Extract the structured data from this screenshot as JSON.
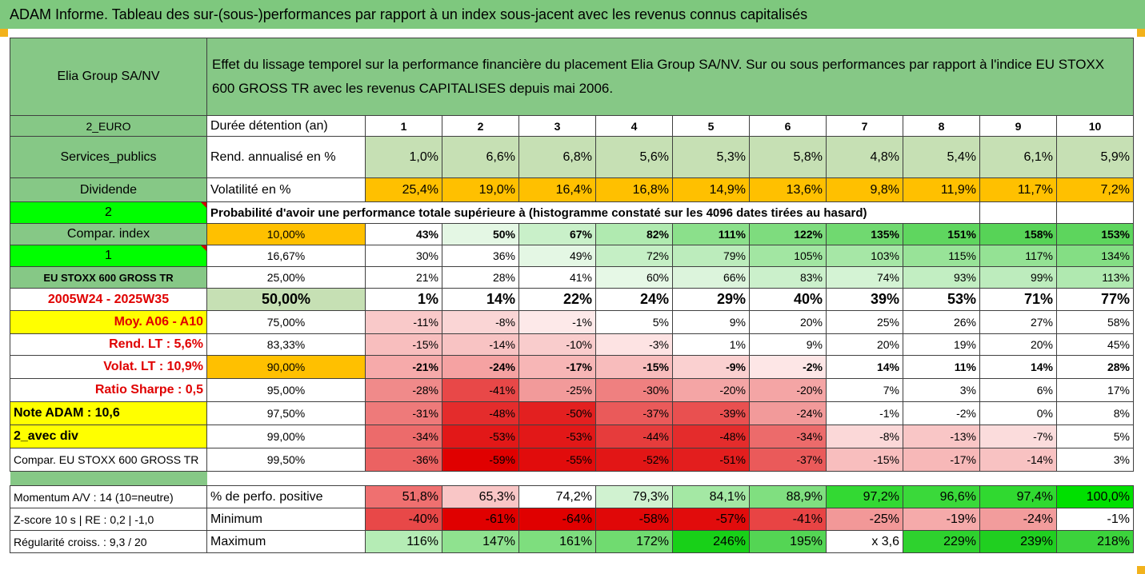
{
  "title": "ADAM Informe. Tableau des sur-(sous-)performances par rapport à un index sous-jacent avec les revenus connus capitalisés",
  "header": {
    "company": "Elia Group SA/NV",
    "description": "Effet du lissage temporel sur la performance financière du placement Elia Group SA/NV. Sur ou sous performances par rapport à l'indice EU STOXX 600 GROSS TR avec les revenus CAPITALISES depuis mai 2006."
  },
  "left_labels": {
    "currency": "2_EURO",
    "sector": "Services_publics",
    "dividend": "Dividende",
    "two": "2",
    "compar_index": "Compar. index",
    "one": "1",
    "index_name": "EU STOXX 600 GROSS TR",
    "period": "2005W24 - 2025W35",
    "moy": "Moy. A06 - A10",
    "rend_lt": "Rend. LT :   5,6%",
    "volat_lt": "Volat. LT :   10,9%",
    "sharpe": "Ratio Sharpe :   0,5",
    "note": "Note ADAM : 10,6",
    "avec_div": "2_avec div",
    "compar_stoxx": "Compar. EU STOXX 600 GROSS TR",
    "momentum": "Momentum A/V : 14 (10=neutre)",
    "zscore": "Z-score 10 s  |  RE : 0,2  |  -1,0",
    "regularite": "Régularité croiss. : 9,3 / 20"
  },
  "row_labels": {
    "duration": "Durée détention (an)",
    "rend": "Rend. annualisé en %",
    "volat": "Volatilité en %",
    "probability": "Probabilité d'avoir une performance totale supérieure à (histogramme constaté sur les 4096 dates tirées au hasard)",
    "pct_positive": "% de perfo. positive",
    "minimum": "Minimum",
    "maximum": "Maximum"
  },
  "years": [
    "1",
    "2",
    "3",
    "4",
    "5",
    "6",
    "7",
    "8",
    "9",
    "10"
  ],
  "rend": [
    "1,0%",
    "6,6%",
    "6,8%",
    "5,6%",
    "5,3%",
    "5,8%",
    "4,8%",
    "5,4%",
    "6,1%",
    "5,9%"
  ],
  "volat": [
    "25,4%",
    "19,0%",
    "16,4%",
    "16,8%",
    "14,9%",
    "13,6%",
    "9,8%",
    "11,9%",
    "11,7%",
    "7,2%"
  ],
  "quantiles": [
    {
      "label": "10,00%",
      "values": [
        "43%",
        "50%",
        "67%",
        "82%",
        "111%",
        "122%",
        "135%",
        "151%",
        "158%",
        "153%"
      ],
      "colors": [
        "#ffffff",
        "#e4f7e4",
        "#c9f0c9",
        "#b0eab0",
        "#8be08b",
        "#7edc7e",
        "#70d970",
        "#5fd65f",
        "#57d357",
        "#5dd55d"
      ]
    },
    {
      "label": "16,67%",
      "values": [
        "30%",
        "36%",
        "49%",
        "72%",
        "79%",
        "105%",
        "103%",
        "115%",
        "117%",
        "134%"
      ],
      "colors": [
        "#ffffff",
        "#ffffff",
        "#e4f7e4",
        "#c5efc5",
        "#bcecbc",
        "#a2e6a2",
        "#a6e7a6",
        "#98e398",
        "#94e294",
        "#84de84"
      ]
    },
    {
      "label": "25,00%",
      "values": [
        "21%",
        "28%",
        "41%",
        "60%",
        "66%",
        "83%",
        "74%",
        "93%",
        "99%",
        "113%"
      ],
      "colors": [
        "#ffffff",
        "#ffffff",
        "#ffffff",
        "#e6f8e6",
        "#dcf4dc",
        "#cbf0cb",
        "#d4f3d4",
        "#c2eec2",
        "#bdecbd",
        "#b0e9b0"
      ]
    },
    {
      "label": "50,00%",
      "values": [
        "1%",
        "14%",
        "22%",
        "24%",
        "29%",
        "40%",
        "39%",
        "53%",
        "71%",
        "77%"
      ],
      "colors": [
        "#ffffff",
        "#ffffff",
        "#ffffff",
        "#ffffff",
        "#ffffff",
        "#ffffff",
        "#ffffff",
        "#ffffff",
        "#ffffff",
        "#ffffff"
      ]
    },
    {
      "label": "75,00%",
      "values": [
        "-11%",
        "-8%",
        "-1%",
        "5%",
        "9%",
        "20%",
        "25%",
        "26%",
        "27%",
        "58%"
      ],
      "colors": [
        "#f9c9c9",
        "#fad5d5",
        "#fde9e9",
        "#ffffff",
        "#ffffff",
        "#ffffff",
        "#ffffff",
        "#ffffff",
        "#ffffff",
        "#ffffff"
      ]
    },
    {
      "label": "83,33%",
      "values": [
        "-15%",
        "-14%",
        "-10%",
        "-3%",
        "1%",
        "9%",
        "20%",
        "19%",
        "20%",
        "45%"
      ],
      "colors": [
        "#f8bebe",
        "#f8c3c3",
        "#f9cccc",
        "#fde3e3",
        "#ffffff",
        "#ffffff",
        "#ffffff",
        "#ffffff",
        "#ffffff",
        "#ffffff"
      ]
    },
    {
      "label": "90,00%",
      "values": [
        "-21%",
        "-24%",
        "-17%",
        "-15%",
        "-9%",
        "-2%",
        "14%",
        "11%",
        "14%",
        "28%"
      ],
      "colors": [
        "#f6aaaa",
        "#f5a2a2",
        "#f7b6b6",
        "#f8bcbc",
        "#fad0d0",
        "#fde6e6",
        "#ffffff",
        "#ffffff",
        "#ffffff",
        "#ffffff"
      ]
    },
    {
      "label": "95,00%",
      "values": [
        "-28%",
        "-41%",
        "-25%",
        "-30%",
        "-20%",
        "-20%",
        "7%",
        "3%",
        "6%",
        "17%"
      ],
      "colors": [
        "#f08a8a",
        "#e84848",
        "#f29a9a",
        "#ef8080",
        "#f4a5a5",
        "#f4a5a5",
        "#ffffff",
        "#ffffff",
        "#ffffff",
        "#ffffff"
      ]
    },
    {
      "label": "97,50%",
      "values": [
        "-31%",
        "-48%",
        "-50%",
        "-37%",
        "-39%",
        "-24%",
        "-1%",
        "-2%",
        "0%",
        "8%"
      ],
      "colors": [
        "#ee7a7a",
        "#e42c2c",
        "#e32020",
        "#ea5a5a",
        "#e95050",
        "#f29a9a",
        "#ffffff",
        "#ffffff",
        "#ffffff",
        "#ffffff"
      ]
    },
    {
      "label": "99,00%",
      "values": [
        "-34%",
        "-53%",
        "-53%",
        "-44%",
        "-48%",
        "-34%",
        "-8%",
        "-13%",
        "-7%",
        "5%"
      ],
      "colors": [
        "#ec6b6b",
        "#e21818",
        "#e21818",
        "#e63c3c",
        "#e42c2c",
        "#ec6b6b",
        "#fbd8d8",
        "#f9c6c6",
        "#fbdcdc",
        "#ffffff"
      ]
    },
    {
      "label": "99,50%",
      "values": [
        "-36%",
        "-59%",
        "-55%",
        "-52%",
        "-51%",
        "-37%",
        "-15%",
        "-17%",
        "-14%",
        "3%"
      ],
      "colors": [
        "#eb6262",
        "#e00000",
        "#e10c0c",
        "#e21616",
        "#e31e1e",
        "#ea5a5a",
        "#f8bebe",
        "#f7b8b8",
        "#f8c2c2",
        "#ffffff"
      ]
    }
  ],
  "pct_positive": {
    "values": [
      "51,8%",
      "65,3%",
      "74,2%",
      "79,3%",
      "84,1%",
      "88,9%",
      "97,2%",
      "96,6%",
      "97,4%",
      "100,0%"
    ],
    "colors": [
      "#ef7070",
      "#f9c6c6",
      "#ffffff",
      "#d0f2d0",
      "#a4e8a4",
      "#80df80",
      "#33d933",
      "#3ad93a",
      "#30d930",
      "#00e000"
    ]
  },
  "minimum": {
    "values": [
      "-40%",
      "-61%",
      "-64%",
      "-58%",
      "-57%",
      "-41%",
      "-25%",
      "-19%",
      "-24%",
      "-1%"
    ],
    "colors": [
      "#e84848",
      "#e00000",
      "#e00000",
      "#e00808",
      "#e10c0c",
      "#e84444",
      "#f29898",
      "#f5aaaa",
      "#f29c9c",
      "#ffffff"
    ]
  },
  "maximum": {
    "values": [
      "116%",
      "147%",
      "161%",
      "172%",
      "246%",
      "195%",
      "x 3,6",
      "229%",
      "239%",
      "218%"
    ],
    "colors": [
      "#b5ecb5",
      "#8fe28f",
      "#7ede7e",
      "#70db70",
      "#18d018",
      "#54d554",
      "#ffffff",
      "#2ed22e",
      "#20cf20",
      "#3cd33c"
    ]
  }
}
